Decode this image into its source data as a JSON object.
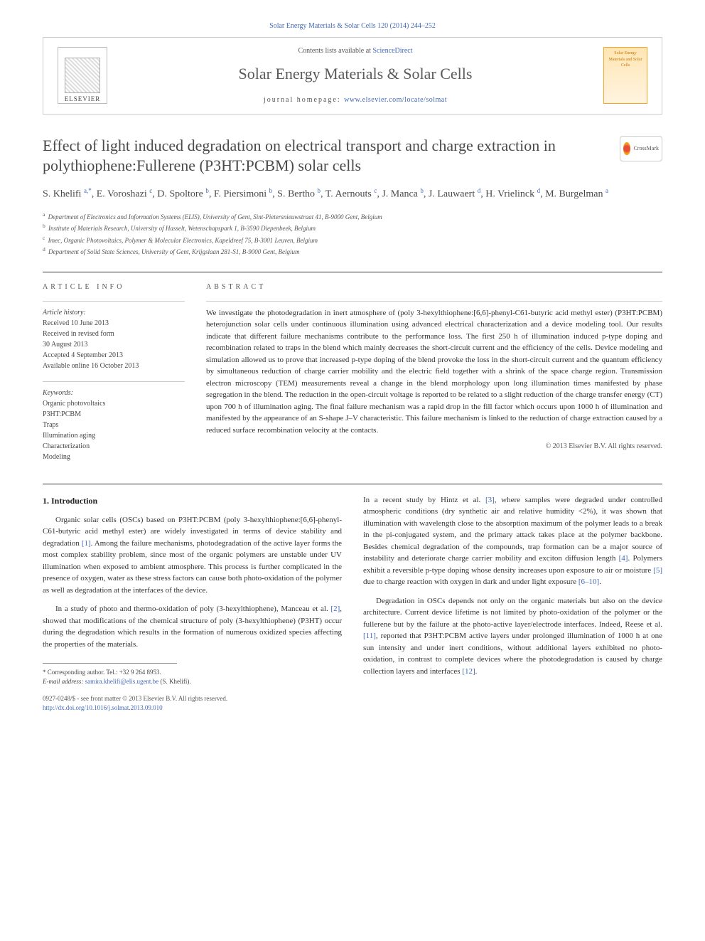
{
  "crumb": {
    "text": "Solar Energy Materials & Solar Cells 120 (2014) 244–252"
  },
  "header": {
    "elsevier": "ELSEVIER",
    "contents_prefix": "Contents lists available at ",
    "contents_link": "ScienceDirect",
    "journal": "Solar Energy Materials & Solar Cells",
    "homepage_label": "journal homepage: ",
    "homepage_url": "www.elsevier.com/locate/solmat",
    "cover_text": "Solar Energy Materials and Solar Cells"
  },
  "title": "Effect of light induced degradation on electrical transport and charge extraction in polythiophene:Fullerene (P3HT:PCBM) solar cells",
  "crossmark": "CrossMark",
  "authors_html": "S. Khelifi <sup>a,*</sup>, E. Voroshazi <sup>c</sup>, D. Spoltore <sup>b</sup>, F. Piersimoni <sup>b</sup>, S. Bertho <sup>b</sup>, T. Aernouts <sup>c</sup>, J. Manca <sup>b</sup>, J. Lauwaert <sup>d</sup>, H. Vrielinck <sup>d</sup>, M. Burgelman <sup>a</sup>",
  "affiliations": [
    {
      "sup": "a",
      "text": "Department of Electronics and Information Systems (ELIS), University of Gent, Sint-Pietersnieuwstraat 41, B-9000 Gent, Belgium"
    },
    {
      "sup": "b",
      "text": "Institute of Materials Research, University of Hasselt, Wetenschapspark 1, B-3590 Diepenbeek, Belgium"
    },
    {
      "sup": "c",
      "text": "Imec, Organic Photovoltaics, Polymer & Molecular Electronics, Kapeldreef 75, B-3001 Leuven, Belgium"
    },
    {
      "sup": "d",
      "text": "Department of Solid State Sciences, University of Gent, Krijgslaan 281-S1, B-9000 Gent, Belgium"
    }
  ],
  "info": {
    "article_info_label": "ARTICLE INFO",
    "abstract_label": "ABSTRACT",
    "history_label": "Article history:",
    "history": [
      "Received 10 June 2013",
      "Received in revised form",
      "30 August 2013",
      "Accepted 4 September 2013",
      "Available online 16 October 2013"
    ],
    "keywords_label": "Keywords:",
    "keywords": [
      "Organic photovoltaics",
      "P3HT:PCBM",
      "Traps",
      "Illumination aging",
      "Characterization",
      "Modeling"
    ]
  },
  "abstract": "We investigate the photodegradation in inert atmosphere of (poly 3-hexylthiophene:[6,6]-phenyl-C61-butyric acid methyl ester) (P3HT:PCBM) heterojunction solar cells under continuous illumination using advanced electrical characterization and a device modeling tool. Our results indicate that different failure mechanisms contribute to the performance loss. The first 250 h of illumination induced p-type doping and recombination related to traps in the blend which mainly decreases the short-circuit current and the efficiency of the cells. Device modeling and simulation allowed us to prove that increased p-type doping of the blend provoke the loss in the short-circuit current and the quantum efficiency by simultaneous reduction of charge carrier mobility and the electric field together with a shrink of the space charge region. Transmission electron microscopy (TEM) measurements reveal a change in the blend morphology upon long illumination times manifested by phase segregation in the blend. The reduction in the open-circuit voltage is reported to be related to a slight reduction of the charge transfer energy (CT) upon 700 h of illumination aging. The final failure mechanism was a rapid drop in the fill factor which occurs upon 1000 h of illumination and manifested by the appearance of an S-shape J–V characteristic. This failure mechanism is linked to the reduction of charge extraction caused by a reduced surface recombination velocity at the contacts.",
  "abstract_copyright": "© 2013 Elsevier B.V. All rights reserved.",
  "intro": {
    "heading": "1.  Introduction",
    "left": [
      "Organic solar cells (OSCs) based on P3HT:PCBM (poly 3-hexylthiophene:[6,6]-phenyl-C61-butyric acid methyl ester) are widely investigated in terms of device stability and degradation [1]. Among the failure mechanisms, photodegradation of the active layer forms the most complex stability problem, since most of the organic polymers are unstable under UV illumination when exposed to ambient atmosphere. This process is further complicated in the presence of oxygen, water as these stress factors can cause both photo-oxidation of the polymer as well as degradation at the interfaces of the device.",
      "In a study of photo and thermo-oxidation of poly (3-hexylthiophene), Manceau et al. [2], showed that modifications of the chemical structure of poly (3-hexylthiophene) (P3HT) occur during the degradation which results in the formation of numerous oxidized species affecting the properties of the materials."
    ],
    "right": [
      "In a recent study by Hintz et al. [3], where samples were degraded under controlled atmospheric conditions (dry synthetic air and relative humidity <2%), it was shown that illumination with wavelength close to the absorption maximum of the polymer leads to a break in the pi-conjugated system, and the primary attack takes place at the polymer backbone. Besides chemical degradation of the compounds, trap formation can be a major source of instability and deteriorate charge carrier mobility and exciton diffusion length [4]. Polymers exhibit a reversible p-type doping whose density increases upon exposure to air or moisture [5] due to charge reaction with oxygen in dark and under light exposure [6–10].",
      "Degradation in OSCs depends not only on the organic materials but also on the device architecture. Current device lifetime is not limited by photo-oxidation of the polymer or the fullerene but by the failure at the photo-active layer/electrode interfaces. Indeed, Reese et al. [11], reported that P3HT:PCBM active layers under prolonged illumination of 1000 h at one sun intensity and under inert conditions, without additional layers exhibited no photo-oxidation, in contrast to complete devices where the photodegradation is caused by charge collection layers and interfaces [12]."
    ]
  },
  "footnotes": {
    "corr": "* Corresponding author. Tel.: +32 9 264 8953.",
    "email_label": "E-mail address: ",
    "email": "samira.khelifi@elis.ugent.be",
    "email_name": " (S. Khelifi)."
  },
  "bottom": {
    "issn": "0927-0248/$ - see front matter © 2013 Elsevier B.V. All rights reserved.",
    "doi": "http://dx.doi.org/10.1016/j.solmat.2013.09.010"
  },
  "colors": {
    "link": "#4169b8",
    "text": "#333333",
    "heading": "#4a4a4a"
  }
}
